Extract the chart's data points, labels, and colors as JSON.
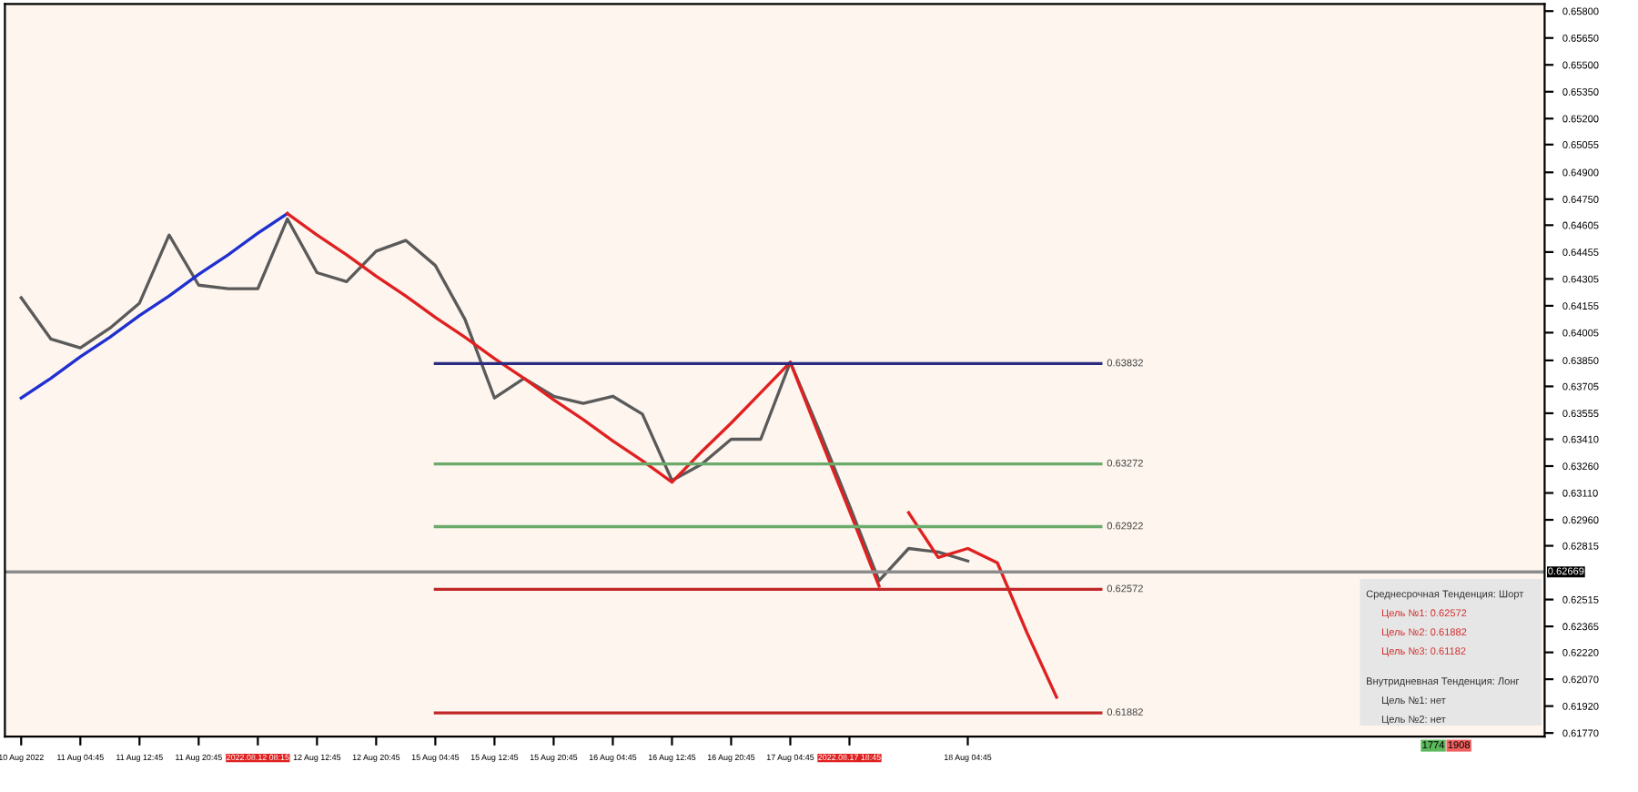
{
  "chart_data": {
    "type": "line",
    "categories": [
      "10 Aug 2022",
      null,
      "11 Aug 04:45",
      null,
      "11 Aug 12:45",
      null,
      "11 Aug 20:45",
      null,
      "2022.08.12 08:15",
      null,
      "12 Aug 12:45",
      null,
      "12 Aug 20:45",
      null,
      "15 Aug 04:45",
      null,
      "15 Aug 12:45",
      null,
      "15 Aug 20:45",
      null,
      "16 Aug 04:45",
      null,
      "16 Aug 12:45",
      null,
      "16 Aug 20:45",
      null,
      "17 Aug 04:45",
      null,
      "2022.08.17 18:45",
      null,
      null,
      null,
      "18 Aug 04:45",
      null,
      null,
      null,
      null,
      null,
      null,
      null,
      null,
      null,
      null,
      null,
      null,
      null,
      null,
      null,
      null,
      null,
      null,
      null
    ],
    "series": [
      {
        "color": "#5a5a5a",
        "values": [
          0.642,
          0.6397,
          0.6392,
          0.6403,
          0.6417,
          0.6455,
          0.6427,
          0.6425,
          0.6425,
          0.6464,
          0.6434,
          0.6429,
          0.6446,
          0.6452,
          0.6438,
          0.6408,
          0.6364,
          0.6375,
          0.6365,
          0.6361,
          0.6365,
          0.6355,
          0.6318,
          0.6327,
          0.6341,
          0.6341,
          0.6384,
          0.6345,
          0.6304,
          0.6262,
          0.628,
          0.6278,
          0.6273,
          null,
          null,
          null,
          null,
          null,
          null,
          null,
          null,
          null,
          null,
          null,
          null,
          null,
          null,
          null,
          null,
          null,
          null,
          null
        ]
      },
      {
        "color": "#1f2fd0",
        "values": [
          0.6364,
          0.6375,
          0.6387,
          0.6398,
          0.641,
          0.6421,
          0.6433,
          0.6444,
          0.6456,
          0.6467,
          null,
          null,
          null,
          null,
          null,
          null,
          null,
          null,
          null,
          null,
          null,
          null,
          null,
          null,
          null,
          null,
          null,
          null,
          null,
          null,
          null,
          null,
          null,
          null,
          null,
          null,
          null,
          null,
          null,
          null,
          null,
          null,
          null,
          null,
          null,
          null,
          null,
          null,
          null,
          null,
          null,
          null
        ]
      },
      {
        "color": "#e02020",
        "values": [
          null,
          null,
          null,
          null,
          null,
          null,
          null,
          null,
          null,
          0.6467,
          0.6455,
          0.6444,
          0.6432,
          0.6421,
          0.6409,
          0.6398,
          0.6386,
          0.6375,
          0.6363,
          0.6352,
          0.634,
          0.6329,
          0.6317,
          0.6334,
          0.635,
          0.6367,
          0.6384,
          0.6342,
          0.6301,
          0.6259,
          null,
          null,
          null,
          null,
          null,
          null,
          null,
          null,
          null,
          null,
          null,
          null,
          null,
          null,
          null,
          null,
          null,
          null,
          null,
          null,
          null,
          null
        ]
      },
      {
        "color": "#e02020",
        "values": [
          null,
          null,
          null,
          null,
          null,
          null,
          null,
          null,
          null,
          null,
          null,
          null,
          null,
          null,
          null,
          null,
          null,
          null,
          null,
          null,
          null,
          null,
          null,
          null,
          null,
          null,
          null,
          null,
          null,
          null,
          0.63,
          0.6275,
          0.628,
          0.6272,
          0.6233,
          0.6197,
          null,
          null,
          null,
          null,
          null,
          null,
          null,
          null,
          null,
          null,
          null,
          null,
          null,
          null,
          null,
          null
        ]
      }
    ],
    "ylim": [
      0.6175,
      0.6584
    ],
    "yticks": [
      {
        "value": 0.658,
        "label": "0.65800"
      },
      {
        "value": 0.6565,
        "label": "0.65650"
      },
      {
        "value": 0.655,
        "label": "0.65500"
      },
      {
        "value": 0.6535,
        "label": "0.65350"
      },
      {
        "value": 0.652,
        "label": "0.65200"
      },
      0.65055,
      {
        "value": 0.649,
        "label": "0.64900"
      },
      {
        "value": 0.6475,
        "label": "0.64750"
      },
      0.64605,
      0.64455,
      0.64305,
      0.64155,
      0.64005,
      {
        "value": 0.6385,
        "label": "0.63850"
      },
      0.63705,
      0.63555,
      {
        "value": 0.6341,
        "label": "0.63410"
      },
      {
        "value": 0.6326,
        "label": "0.63260"
      },
      {
        "value": 0.6311,
        "label": "0.63110"
      },
      {
        "value": 0.6296,
        "label": "0.62960"
      },
      0.62815,
      0.62515,
      0.62365,
      {
        "value": 0.6222,
        "label": "0.62220"
      },
      {
        "value": 0.6207,
        "label": "0.62070"
      },
      {
        "value": 0.6192,
        "label": "0.61920"
      },
      {
        "value": 0.6177,
        "label": "0.61770"
      }
    ],
    "ref_lines": [
      {
        "axis": "y",
        "value": 0.63832,
        "label": "0.63832",
        "color": "#2a2a80"
      },
      {
        "axis": "y",
        "value": 0.63272,
        "label": "0.63272",
        "color": "#6aaa6a"
      },
      {
        "axis": "y",
        "value": 0.62922,
        "label": "0.62922",
        "color": "#6aaa6a"
      },
      {
        "axis": "y",
        "value": 0.62572,
        "label": "0.62572",
        "color": "#c02828"
      },
      {
        "axis": "y",
        "value": 0.61882,
        "label": "0.61882",
        "color": "#c02828"
      },
      {
        "axis": "y",
        "value": 0.62669,
        "label": "0.62669",
        "color": "#8c8c8c"
      }
    ],
    "annotations": [
      "Среднесрочная Тенденция: Шорт",
      "Цель №1: 0.62572",
      "Цель №2: 0.61882",
      "Цель №3: 0.61182",
      "Внутридневная Тенденция: Лонг",
      "Цель №1: нет",
      "Цель №2: нет",
      "1774",
      "1908"
    ]
  }
}
